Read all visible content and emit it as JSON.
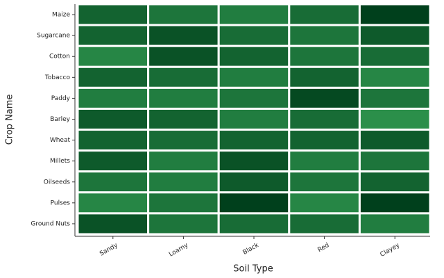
{
  "chart_data": {
    "type": "heatmap",
    "x_label": "Soil Type",
    "y_label": "Crop Name",
    "x_categories": [
      "Sandy",
      "Loamy",
      "Black",
      "Red",
      "Clayey"
    ],
    "y_categories": [
      "Maize",
      "Sugarcane",
      "Cotton",
      "Tobacco",
      "Paddy",
      "Barley",
      "Wheat",
      "Millets",
      "Oilseeds",
      "Pulses",
      "Ground Nuts"
    ],
    "values": [
      [
        6,
        4,
        3,
        5,
        10
      ],
      [
        6,
        8,
        5,
        4,
        7
      ],
      [
        2,
        8,
        6,
        4,
        5
      ],
      [
        6,
        5,
        3,
        6,
        2
      ],
      [
        3,
        3,
        4,
        9,
        4
      ],
      [
        7,
        6,
        3,
        5,
        1
      ],
      [
        6,
        5,
        6,
        6,
        7
      ],
      [
        7,
        3,
        8,
        3,
        4
      ],
      [
        4,
        3,
        7,
        4,
        6
      ],
      [
        2,
        4,
        10,
        2,
        10
      ],
      [
        8,
        4,
        5,
        5,
        3
      ]
    ],
    "zlim": [
      1,
      10
    ],
    "colors": [
      "#2b8f4a",
      "#00401c"
    ]
  }
}
